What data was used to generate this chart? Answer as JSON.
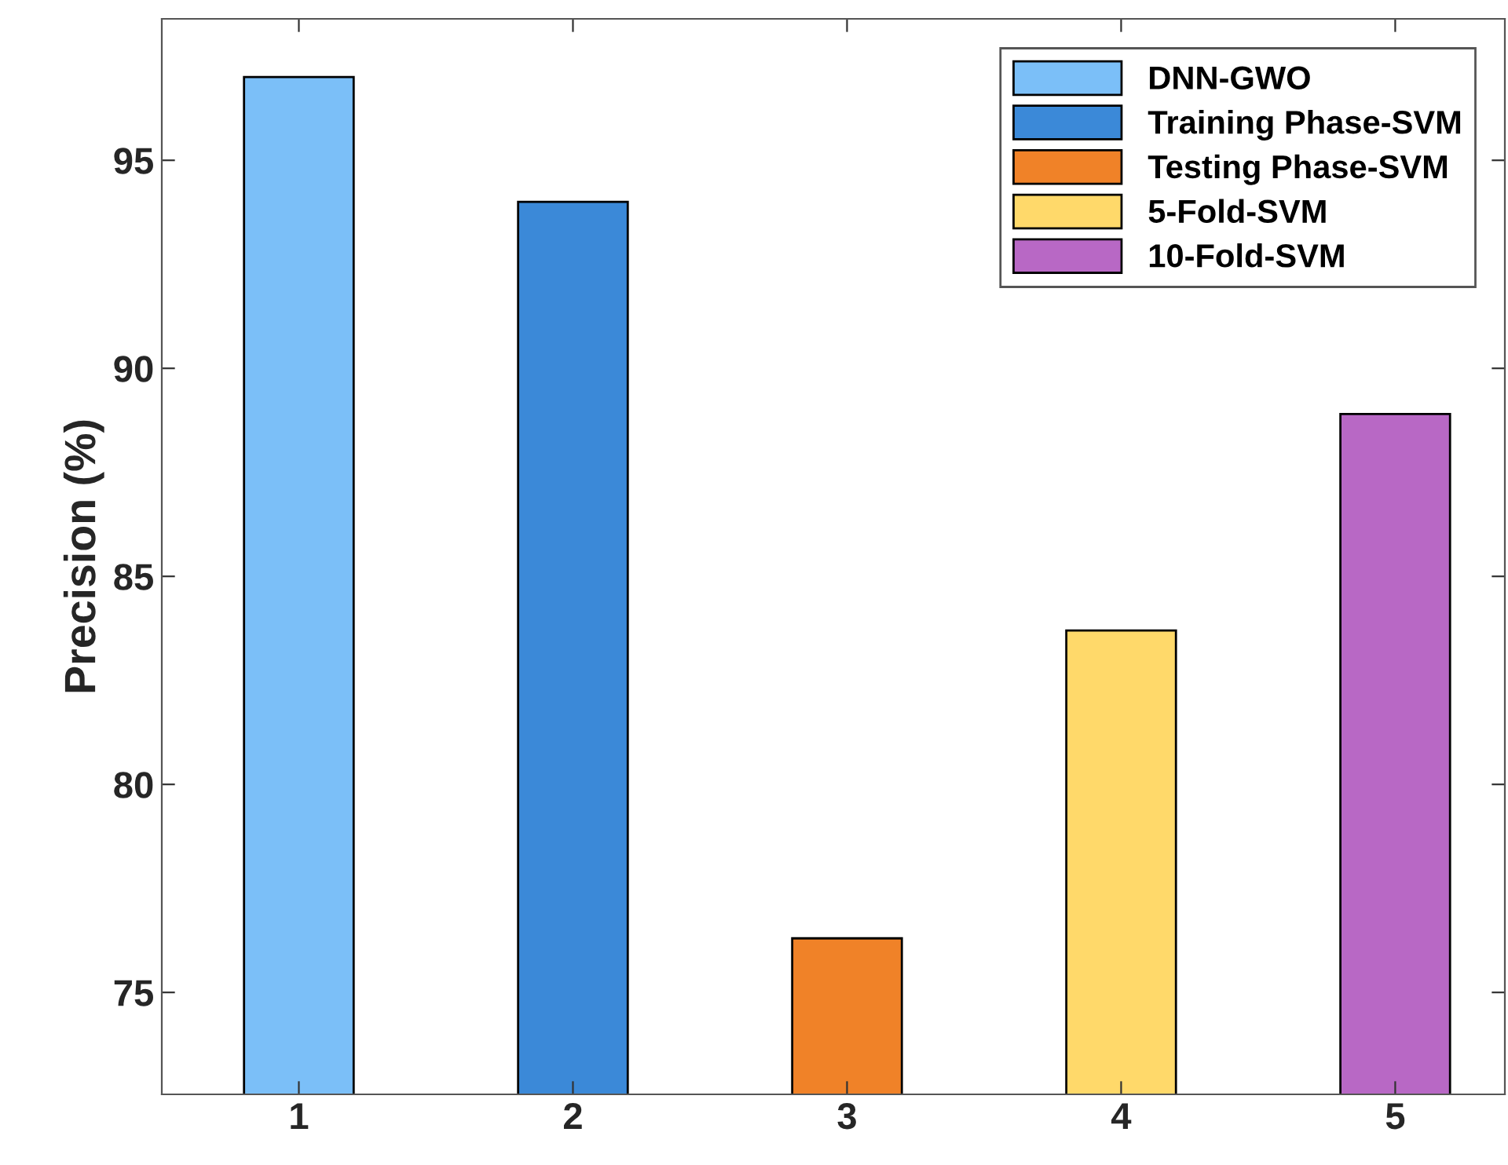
{
  "chart_data": {
    "type": "bar",
    "ylabel": "Precision (%)",
    "xlim": [
      0.5,
      5.4
    ],
    "xticks": [
      1,
      2,
      3,
      4,
      5
    ],
    "ylim": [
      72.55,
      98.4
    ],
    "yticks": [
      75,
      80,
      85,
      90,
      95
    ],
    "series": [
      {
        "name": "DNN-GWO",
        "color": "#7bbff8",
        "x": [
          1
        ],
        "values": [
          97.0
        ]
      },
      {
        "name": "Training Phase-SVM",
        "color": "#3b89d8",
        "x": [
          2
        ],
        "values": [
          94.0
        ]
      },
      {
        "name": "Testing Phase-SVM",
        "color": "#f08228",
        "x": [
          3
        ],
        "values": [
          76.3
        ]
      },
      {
        "name": "5-Fold-SVM",
        "color": "#ffd96a",
        "x": [
          4
        ],
        "values": [
          83.7
        ]
      },
      {
        "name": "10-Fold-SVM",
        "color": "#b868c5",
        "x": [
          5
        ],
        "values": [
          88.9
        ]
      }
    ],
    "legend": "top right",
    "grid": false
  }
}
